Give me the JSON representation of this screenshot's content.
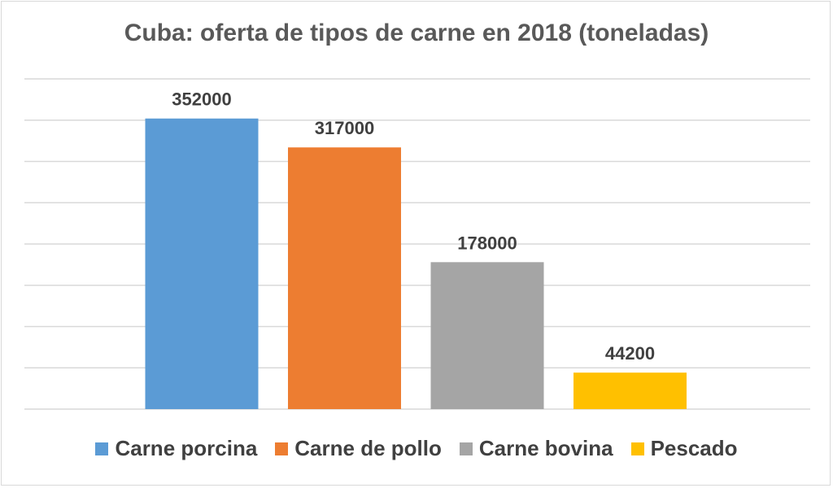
{
  "chart_data": {
    "type": "bar",
    "title": "Cuba: oferta de tipos de carne en 2018 (toneladas)",
    "categories": [
      "Carne porcina",
      "Carne de pollo",
      "Carne bovina",
      "Pescado"
    ],
    "values": [
      352000,
      317000,
      178000,
      44200
    ],
    "colors": [
      "#5b9bd5",
      "#ed7d31",
      "#a5a5a5",
      "#ffc000"
    ],
    "ylim": [
      0,
      400000
    ],
    "y_gridline_step": 50000,
    "grid": true,
    "axis_tick_labels_shown": false,
    "data_labels": [
      "352000",
      "317000",
      "178000",
      "44200"
    ],
    "legend": {
      "position": "bottom",
      "entries": [
        "Carne porcina",
        "Carne de pollo",
        "Carne bovina",
        "Pescado"
      ]
    }
  }
}
